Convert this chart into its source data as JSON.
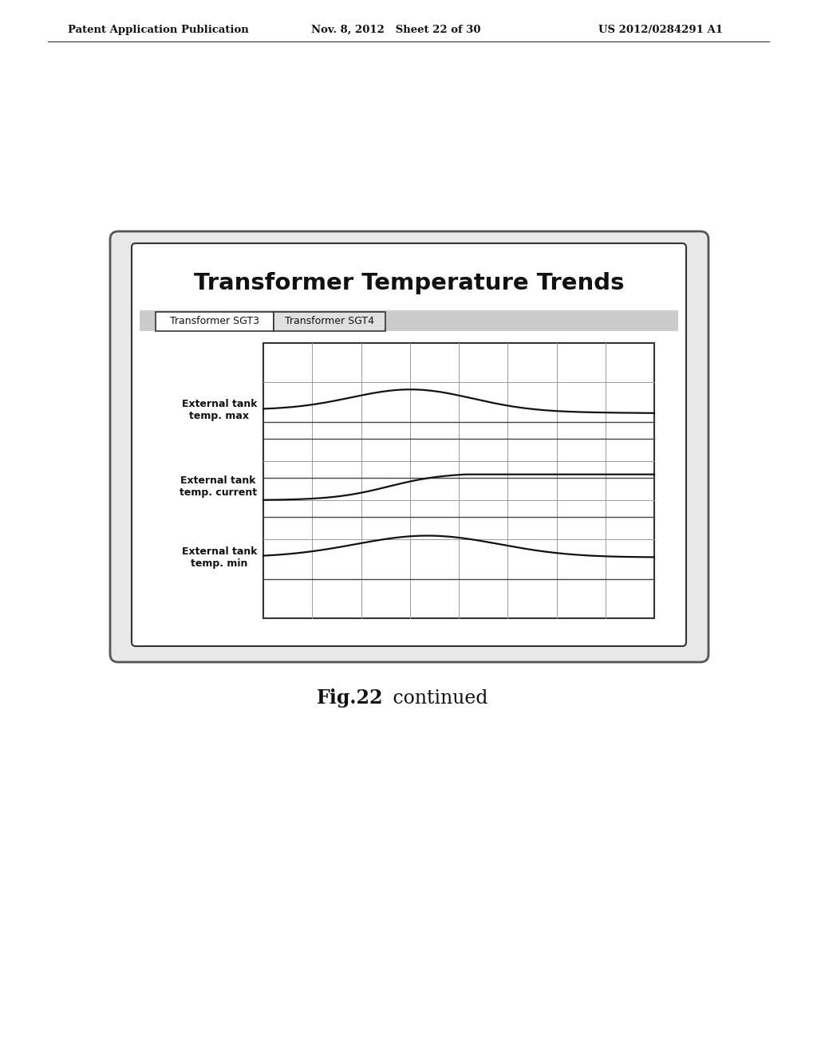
{
  "page_header_left": "Patent Application Publication",
  "page_header_mid": "Nov. 8, 2012   Sheet 22 of 30",
  "page_header_right": "US 2012/0284291 A1",
  "title": "Transformer Temperature Trends",
  "tab1": "Transformer SGT3",
  "tab2": "Transformer SGT4",
  "label_max": "External tank\ntemp. max",
  "label_current": "External tank\ntemp. current",
  "label_min": "External tank\ntemp. min",
  "fig_caption_bold": "Fig.22",
  "fig_caption_normal": " continued",
  "background_color": "#ffffff",
  "grid_color": "#999999",
  "line_color": "#111111",
  "num_cols": 8,
  "num_rows": 7
}
